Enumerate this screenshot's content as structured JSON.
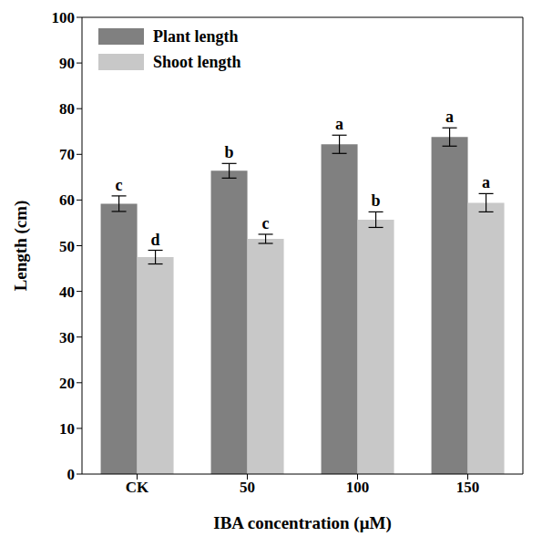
{
  "chart_data": {
    "type": "bar",
    "x_label": "IBA concentration (μM)",
    "y_label": "Length (cm)",
    "categories": [
      "CK",
      "50",
      "100",
      "150"
    ],
    "series": [
      {
        "name": "Plant length",
        "color": "#808080",
        "values": [
          59.2,
          66.4,
          72.2,
          73.8
        ],
        "errors": [
          1.7,
          1.6,
          2.0,
          2.0
        ],
        "letters": [
          "c",
          "b",
          "a",
          "a"
        ]
      },
      {
        "name": "Shoot length",
        "color": "#c8c8c8",
        "values": [
          47.5,
          51.5,
          55.7,
          59.4
        ],
        "errors": [
          1.5,
          1.0,
          1.7,
          2.0
        ],
        "letters": [
          "d",
          "c",
          "b",
          "a"
        ]
      }
    ],
    "ylim": [
      0,
      100
    ],
    "yticks": [
      0,
      10,
      20,
      30,
      40,
      50,
      60,
      70,
      80,
      90,
      100
    ],
    "legend": "upper left",
    "grid": false
  }
}
